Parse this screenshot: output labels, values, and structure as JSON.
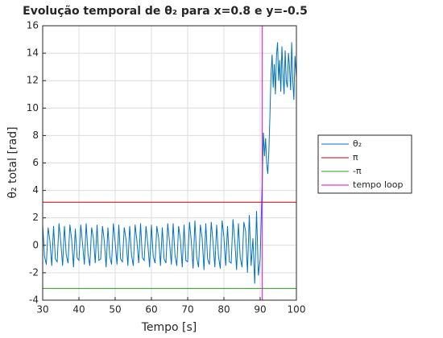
{
  "chart_data": {
    "type": "line",
    "title": "Evolução temporal de θ₂ para x=0.8 e y=-0.5",
    "xlabel": "Tempo [s]",
    "ylabel": "θ₂ total [rad]",
    "xlim": [
      30,
      100
    ],
    "xticks": [
      30,
      40,
      50,
      60,
      70,
      80,
      90,
      100
    ],
    "ylim": [
      -4,
      16
    ],
    "yticks": [
      -4,
      -2,
      0,
      2,
      4,
      6,
      8,
      10,
      12,
      14,
      16
    ],
    "grid": true,
    "legend": "outside-right",
    "x": [
      30,
      30.5,
      31,
      31.5,
      32,
      32.5,
      33,
      33.5,
      34,
      34.5,
      35,
      35.5,
      36,
      36.5,
      37,
      37.5,
      38,
      38.5,
      39,
      39.5,
      40,
      40.5,
      41,
      41.5,
      42,
      42.5,
      43,
      43.5,
      44,
      44.5,
      45,
      45.5,
      46,
      46.5,
      47,
      47.5,
      48,
      48.5,
      49,
      49.5,
      50,
      50.5,
      51,
      51.5,
      52,
      52.5,
      53,
      53.5,
      54,
      54.5,
      55,
      55.5,
      56,
      56.5,
      57,
      57.5,
      58,
      58.5,
      59,
      59.5,
      60,
      60.5,
      61,
      61.5,
      62,
      62.5,
      63,
      63.5,
      64,
      64.5,
      65,
      65.5,
      66,
      66.5,
      67,
      67.5,
      68,
      68.5,
      69,
      69.5,
      70,
      70.5,
      71,
      71.5,
      72,
      72.5,
      73,
      73.5,
      74,
      74.5,
      75,
      75.5,
      76,
      76.5,
      77,
      77.5,
      78,
      78.5,
      79,
      79.5,
      80,
      80.5,
      81,
      81.5,
      82,
      82.5,
      83,
      83.5,
      84,
      84.5,
      85,
      85.5,
      86,
      86.5,
      87,
      87.5,
      88,
      88.5,
      89,
      89.5,
      90,
      90.3,
      90.6,
      90.9,
      91.2,
      91.5,
      91.8,
      92.1,
      92.4,
      92.7,
      93,
      93.3,
      93.6,
      93.9,
      94.2,
      94.5,
      94.8,
      95.1,
      95.4,
      95.7,
      96,
      96.3,
      96.6,
      96.9,
      97.2,
      97.5,
      97.8,
      98.1,
      98.4,
      98.7,
      99,
      99.3,
      99.6,
      100
    ],
    "series": [
      {
        "name": "θ₂",
        "color": "#0072bd",
        "values": [
          1.5,
          -0.8,
          -1.4,
          1.3,
          0.3,
          -1.5,
          1.4,
          -1.0,
          -1.2,
          1.6,
          0.2,
          -1.5,
          1.4,
          -0.7,
          -1.3,
          1.5,
          0.4,
          -1.6,
          1.2,
          -0.9,
          -1.1,
          1.5,
          0.1,
          -1.4,
          1.6,
          -0.6,
          -1.5,
          1.3,
          0.5,
          -1.3,
          1.5,
          -1.1,
          -1.0,
          1.4,
          0.3,
          -1.6,
          1.3,
          -0.8,
          -1.4,
          1.6,
          0.2,
          -1.4,
          1.5,
          -1.0,
          -1.2,
          1.3,
          0.4,
          -1.5,
          1.4,
          -0.7,
          -1.5,
          1.5,
          0.3,
          -1.3,
          1.6,
          -0.9,
          -1.1,
          1.4,
          0.1,
          -1.6,
          1.5,
          -0.8,
          -1.3,
          1.4,
          0.5,
          -1.5,
          1.3,
          -1.0,
          -1.3,
          1.6,
          0.2,
          -1.4,
          1.6,
          -0.7,
          -1.5,
          1.4,
          0.4,
          -1.6,
          1.5,
          -1.1,
          -1.2,
          1.7,
          0.3,
          -1.7,
          1.8,
          -0.9,
          -1.6,
          1.5,
          0.5,
          -1.8,
          1.6,
          -1.0,
          -1.4,
          1.7,
          0.2,
          -1.6,
          1.5,
          -0.8,
          -1.7,
          1.8,
          0.6,
          -1.5,
          1.4,
          -1.2,
          -1.3,
          1.9,
          0.3,
          -1.8,
          1.6,
          -0.9,
          -1.6,
          1.7,
          1.0,
          -2.0,
          2.2,
          -1.5,
          0.5,
          -2.8,
          2.5,
          -2.2,
          -1.0,
          2.0,
          5.0,
          8.2,
          6.5,
          7.8,
          6.0,
          5.2,
          6.8,
          9.5,
          12.5,
          13.9,
          11.5,
          13.2,
          11.0,
          13.8,
          14.8,
          12.0,
          13.5,
          11.2,
          14.5,
          12.5,
          11.0,
          14.2,
          12.0,
          11.5,
          14.0,
          13.0,
          11.3,
          14.8,
          12.0,
          10.6,
          13.8,
          12.2
        ]
      }
    ],
    "hlines": [
      {
        "name": "π",
        "color": "#c00000",
        "value": 3.1416
      },
      {
        "name": "-π",
        "color": "#20a020",
        "value": -3.1416
      }
    ],
    "vlines": [
      {
        "name": "tempo loop",
        "color": "#e000e0",
        "value": 90.6
      }
    ]
  }
}
